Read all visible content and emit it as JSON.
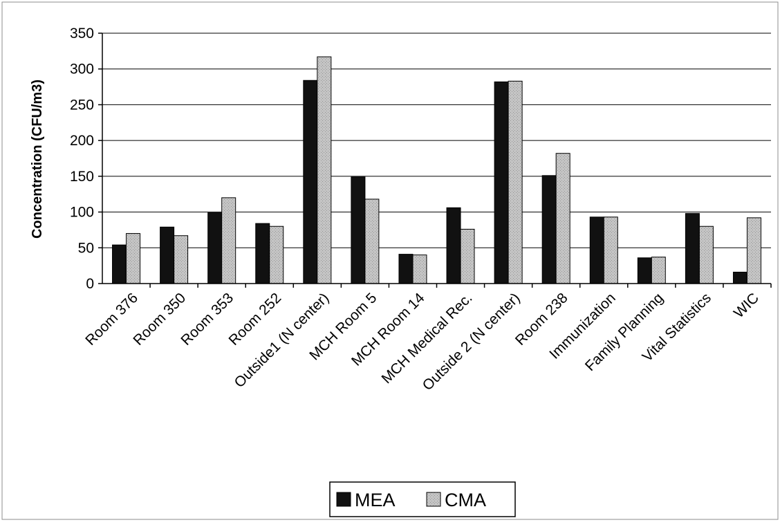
{
  "chart_data": {
    "type": "bar",
    "title": "",
    "xlabel": "",
    "ylabel": "Concentration (CFU/m3)",
    "ylim": [
      0,
      350
    ],
    "yticks": [
      0,
      50,
      100,
      150,
      200,
      250,
      300,
      350
    ],
    "grid": true,
    "legend_position": "bottom",
    "categories": [
      "Room 376",
      "Room 350",
      "Room 353",
      "Room 252",
      "Outside1 (N center)",
      "MCH Room 5",
      "MCH Room 14",
      "MCH Medical Rec.",
      "Outside 2 (N center)",
      "Room 238",
      "Immunization",
      "Family Planning",
      "Vital Statistics",
      "WIC"
    ],
    "series": [
      {
        "name": "MEA",
        "color": "#111111",
        "values": [
          54,
          79,
          99,
          84,
          284,
          149,
          41,
          106,
          282,
          151,
          93,
          36,
          98,
          16
        ]
      },
      {
        "name": "CMA",
        "color": "#b3b3b3",
        "values": [
          70,
          67,
          120,
          80,
          317,
          118,
          40,
          76,
          283,
          182,
          93,
          37,
          80,
          92
        ]
      }
    ]
  }
}
